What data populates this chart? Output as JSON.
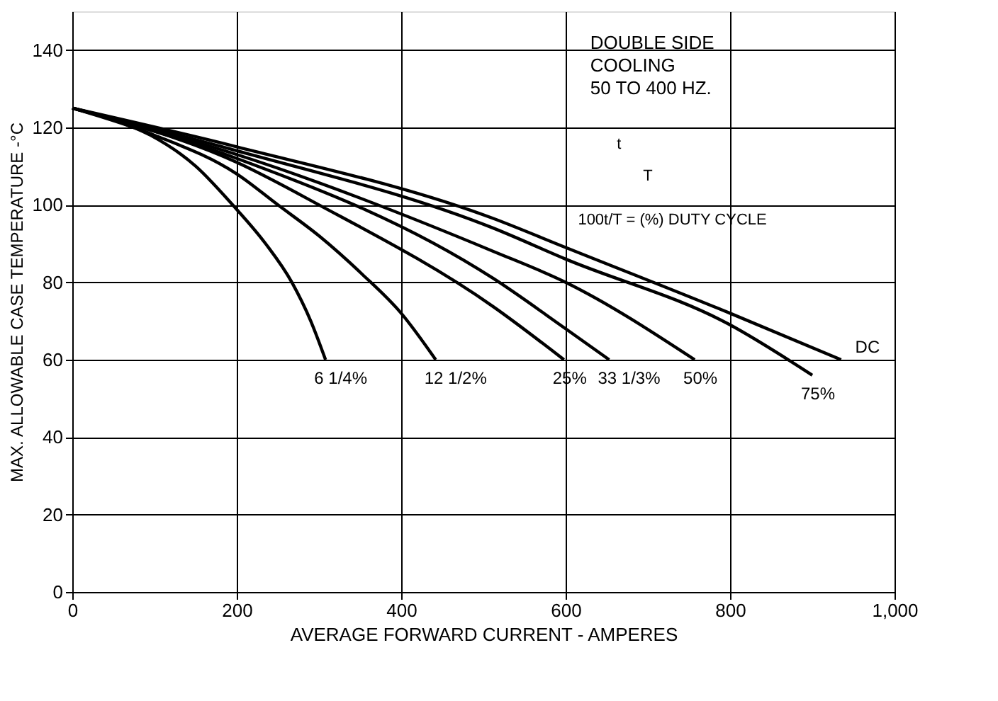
{
  "chart_data": {
    "type": "line",
    "xlabel": "AVERAGE FORWARD CURRENT - AMPERES",
    "ylabel": "MAX. ALLOWABLE CASE TEMPERATURE -°C",
    "xlim": [
      0,
      1000
    ],
    "xticks": [
      0,
      200,
      400,
      600,
      800,
      {
        "value": 1000,
        "label": "1,000"
      }
    ],
    "ylim": [
      0,
      150
    ],
    "yticks": [
      0,
      20,
      40,
      60,
      80,
      100,
      120,
      140
    ],
    "grid": true,
    "legend": false,
    "marker": "none",
    "line_style": "solid",
    "series": [
      {
        "name": "6 1/4%",
        "color": "#000000",
        "x": [
          0,
          50,
          95,
          150,
          195,
          235,
          267,
          290,
          308
        ],
        "values": [
          125,
          122,
          118,
          110,
          100,
          90,
          80,
          70,
          60
        ]
      },
      {
        "name": "12 1/2%",
        "color": "#000000",
        "x": [
          0,
          100,
          200,
          250,
          300,
          353,
          400,
          442
        ],
        "values": [
          125,
          118,
          108,
          100,
          92,
          82,
          72,
          60
        ]
      },
      {
        "name": "25%",
        "color": "#000000",
        "x": [
          0,
          200,
          300,
          512,
          598
        ],
        "values": [
          125,
          111,
          100,
          73.7,
          60
        ]
      },
      {
        "name": "33 1/3%",
        "color": "#000000",
        "x": [
          0,
          200,
          512,
          600,
          653
        ],
        "values": [
          125,
          112,
          81,
          68,
          60
        ]
      },
      {
        "name": "50%",
        "color": "#000000",
        "x": [
          0,
          200,
          512,
          600,
          757
        ],
        "values": [
          125,
          113,
          88,
          80,
          60
        ]
      },
      {
        "name": "75%",
        "color": "#000000",
        "x": [
          0,
          200,
          512,
          600,
          800,
          900
        ],
        "values": [
          125,
          114,
          94,
          86,
          69,
          56
        ]
      },
      {
        "name": "DC",
        "color": "#000000",
        "x": [
          0,
          200,
          512,
          600,
          800,
          935
        ],
        "values": [
          125,
          115,
          96.5,
          89,
          72,
          60
        ]
      }
    ],
    "annotations": [
      "DOUBLE SIDE\nCOOLING\n50 TO 400 HZ.",
      "t",
      "T",
      "100t/T = (%) DUTY CYCLE"
    ]
  }
}
